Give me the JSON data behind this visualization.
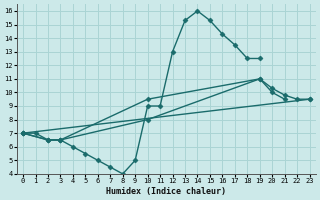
{
  "xlabel": "Humidex (Indice chaleur)",
  "xlim": [
    -0.5,
    23.5
  ],
  "ylim": [
    4,
    16.5
  ],
  "xticks": [
    0,
    1,
    2,
    3,
    4,
    5,
    6,
    7,
    8,
    9,
    10,
    11,
    12,
    13,
    14,
    15,
    16,
    17,
    18,
    19,
    20,
    21,
    22,
    23
  ],
  "yticks": [
    4,
    5,
    6,
    7,
    8,
    9,
    10,
    11,
    12,
    13,
    14,
    15,
    16
  ],
  "background_color": "#cce9e9",
  "grid_color": "#aad4d4",
  "line_color": "#1a6b6b",
  "line1_x": [
    0,
    1,
    2,
    3,
    4,
    5,
    6,
    7,
    8,
    9,
    10,
    11,
    12,
    13,
    14,
    15,
    16,
    17,
    18,
    19
  ],
  "line1_y": [
    7.0,
    7.0,
    6.5,
    6.5,
    6.0,
    5.5,
    5.0,
    4.5,
    4.0,
    5.0,
    9.0,
    9.0,
    13.0,
    15.3,
    16.0,
    15.3,
    14.3,
    13.5,
    12.5,
    12.5
  ],
  "line2_x": [
    0,
    2,
    3,
    10,
    19,
    20,
    21
  ],
  "line2_y": [
    7.0,
    6.5,
    6.5,
    9.5,
    11.0,
    10.0,
    9.5
  ],
  "line3_x": [
    0,
    23
  ],
  "line3_y": [
    7.0,
    9.5
  ],
  "line4_x": [
    0,
    2,
    3,
    10,
    19,
    20,
    21,
    22,
    23
  ],
  "line4_y": [
    7.0,
    6.5,
    6.5,
    8.0,
    11.0,
    10.3,
    9.8,
    9.5,
    9.5
  ],
  "marker": "D",
  "markersize": 2.5,
  "linewidth": 1.0
}
